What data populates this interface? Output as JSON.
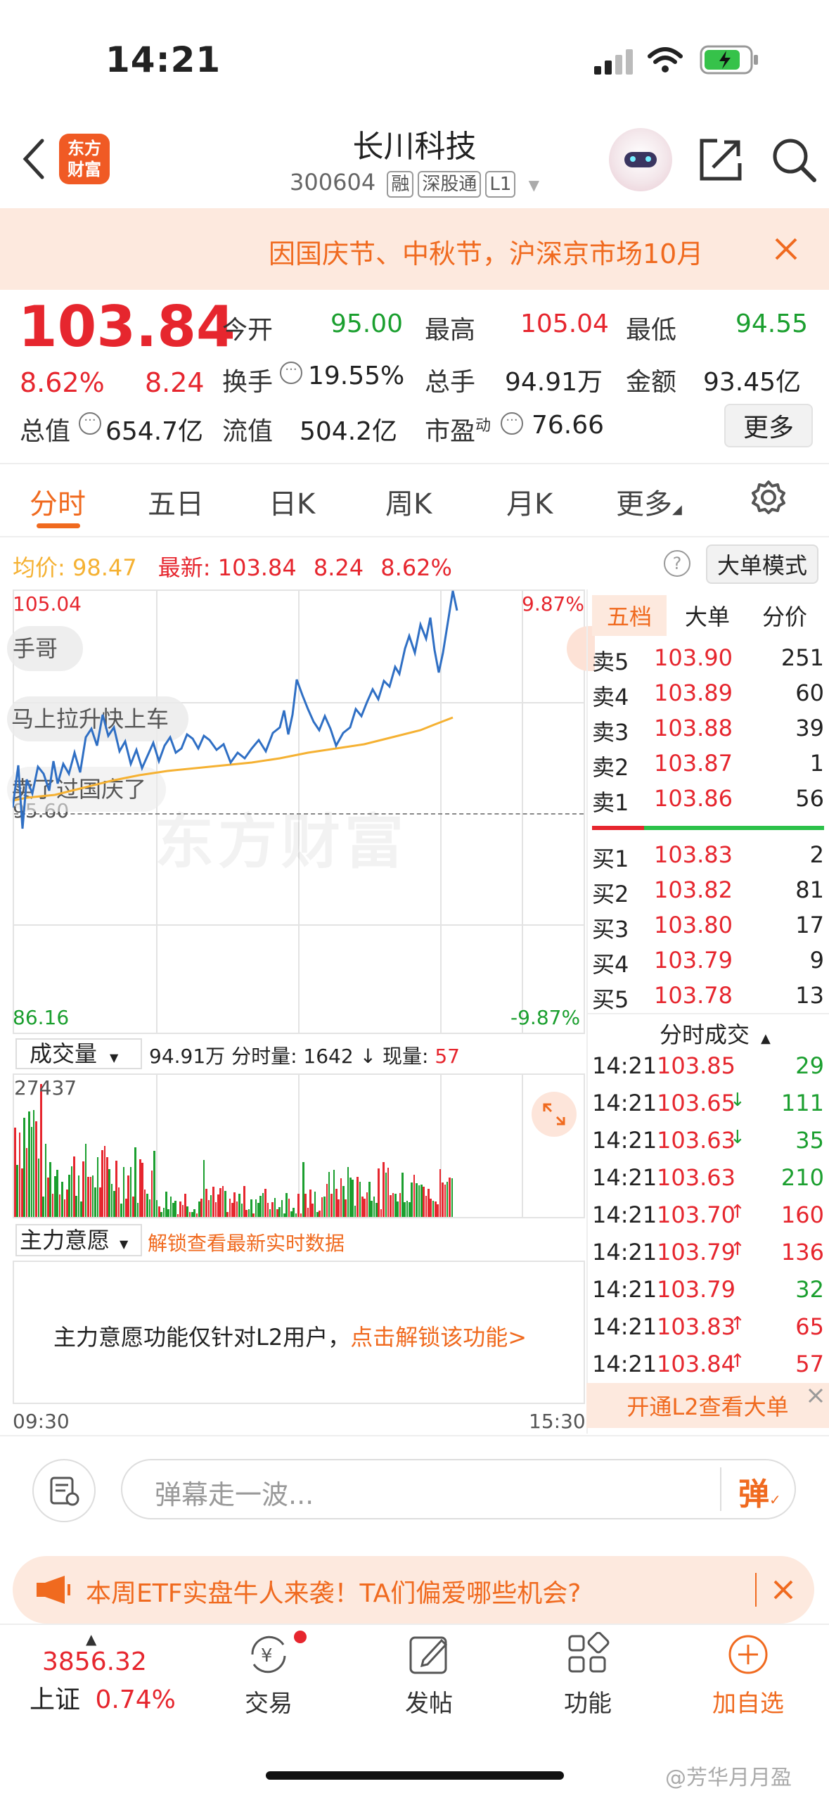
{
  "status_bar": {
    "time": "14:21"
  },
  "header": {
    "logo_text_1": "东方",
    "logo_text_2": "财富",
    "title": "长川科技",
    "code": "300604",
    "tags": [
      "融",
      "深股通",
      "L1"
    ]
  },
  "banner": {
    "text": "因国庆节、中秋节，沪深京市场10月"
  },
  "quote": {
    "price": "103.84",
    "change_pct": "8.62%",
    "change": "8.24",
    "fields": {
      "open_label": "今开",
      "open": "95.00",
      "high_label": "最高",
      "high": "105.04",
      "low_label": "最低",
      "low": "94.55",
      "turnover_label": "换手",
      "turnover": "19.55%",
      "volume_label": "总手",
      "volume": "94.91万",
      "amount_label": "金额",
      "amount": "93.45亿",
      "mktcap_label": "总值",
      "mktcap": "654.7亿",
      "float_label": "流值",
      "float": "504.2亿",
      "pe_label": "市盈",
      "pe_sup": "动",
      "pe": "76.66"
    },
    "more_label": "更多"
  },
  "tabs": {
    "items": [
      "分时",
      "五日",
      "日K",
      "周K",
      "月K",
      "更多"
    ],
    "active": 0
  },
  "chart_info": {
    "avg_label": "均价:",
    "avg": "98.47",
    "latest_label": "最新:",
    "latest": "103.84",
    "latest_change": "8.24",
    "latest_pct": "8.62%",
    "bigorder_label": "大单模式"
  },
  "chart_axes": {
    "y_top": "105.04",
    "y_bottom": "86.16",
    "y_ref": "95.60",
    "pct_top": "9.87%",
    "pct_bottom": "-9.87%",
    "x_start": "09:30",
    "x_end": "15:30"
  },
  "chart_overlays": [
    "手哥",
    "马上拉升快上车",
    "卖了过国庆了"
  ],
  "chart_watermark": "东方财富",
  "volume_bar": {
    "selector": "成交量",
    "total": "94.91万",
    "fenshi_label": "分时量:",
    "fenshi": "1642",
    "current_label": "现量:",
    "current": "57",
    "max_label": "27437"
  },
  "main_force": {
    "selector": "主力意愿",
    "unlock_link": "解锁查看最新实时数据",
    "notice": "主力意愿功能仅针对L2用户，",
    "notice_link": "点击解锁该功能>"
  },
  "order_book": {
    "tabs": [
      "五档",
      "大单",
      "分价"
    ],
    "asks": [
      {
        "label": "卖5",
        "price": "103.90",
        "vol": "251"
      },
      {
        "label": "卖4",
        "price": "103.89",
        "vol": "60"
      },
      {
        "label": "卖3",
        "price": "103.88",
        "vol": "39"
      },
      {
        "label": "卖2",
        "price": "103.87",
        "vol": "1"
      },
      {
        "label": "卖1",
        "price": "103.86",
        "vol": "56"
      }
    ],
    "bids": [
      {
        "label": "买1",
        "price": "103.83",
        "vol": "2"
      },
      {
        "label": "买2",
        "price": "103.82",
        "vol": "81"
      },
      {
        "label": "买3",
        "price": "103.80",
        "vol": "17"
      },
      {
        "label": "买4",
        "price": "103.79",
        "vol": "9"
      },
      {
        "label": "买5",
        "price": "103.78",
        "vol": "13"
      }
    ]
  },
  "trades": {
    "title": "分时成交",
    "rows": [
      {
        "time": "14:21",
        "price": "103.85",
        "arrow": "",
        "vol": "29",
        "dir": "green"
      },
      {
        "time": "14:21",
        "price": "103.65",
        "arrow": "↓",
        "vol": "111",
        "dir": "green"
      },
      {
        "time": "14:21",
        "price": "103.63",
        "arrow": "↓",
        "vol": "35",
        "dir": "green"
      },
      {
        "time": "14:21",
        "price": "103.63",
        "arrow": "",
        "vol": "210",
        "dir": "green"
      },
      {
        "time": "14:21",
        "price": "103.70",
        "arrow": "↑",
        "vol": "160",
        "dir": "red"
      },
      {
        "time": "14:21",
        "price": "103.79",
        "arrow": "↑",
        "vol": "136",
        "dir": "red"
      },
      {
        "time": "14:21",
        "price": "103.79",
        "arrow": "",
        "vol": "32",
        "dir": "green"
      },
      {
        "time": "14:21",
        "price": "103.83",
        "arrow": "↑",
        "vol": "65",
        "dir": "red"
      },
      {
        "time": "14:21",
        "price": "103.84",
        "arrow": "↑",
        "vol": "57",
        "dir": "red"
      }
    ],
    "l2_link": "开通L2查看大单"
  },
  "comment": {
    "placeholder": "弹幕走一波...",
    "danmu_label": "弹"
  },
  "promo": {
    "text": "本周ETF实盘牛人来袭！TA们偏爱哪些机会?"
  },
  "bottom_nav": {
    "index_value": "3856.32",
    "index_name": "上证",
    "index_pct": "0.74%",
    "items": [
      "交易",
      "发帖",
      "功能",
      "加自选"
    ]
  },
  "watermark": "@芳华月月盈",
  "colors": {
    "red": "#e6262e",
    "green": "#1b9f2f",
    "orange": "#f06a1f",
    "price_line": "#2f6fc4",
    "avg_line": "#f5b132"
  }
}
